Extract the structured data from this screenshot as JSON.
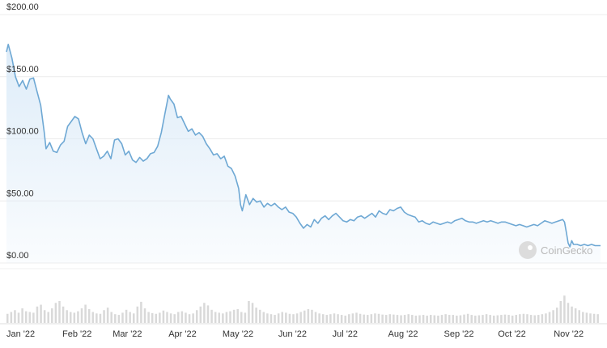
{
  "chart_data": {
    "type": "area",
    "title": "",
    "xlabel": "",
    "ylabel": "",
    "ylim": [
      0,
      200
    ],
    "y_ticks": [
      "$0.00",
      "$50.00",
      "$100.00",
      "$150.00",
      "$200.00"
    ],
    "x_ticks": [
      "Jan '22",
      "Feb '22",
      "Mar '22",
      "Apr '22",
      "May '22",
      "Jun '22",
      "Jul '22",
      "Aug '22",
      "Sep '22",
      "Oct '22",
      "Nov '22"
    ],
    "grid": true,
    "line_color": "#6ea8d4",
    "fill_color": "#e8f2fb",
    "volume_color": "#d9d9d9",
    "series": [
      {
        "values": [
          [
            "2022-01-01",
            170
          ],
          [
            "2022-01-02",
            176
          ],
          [
            "2022-01-04",
            165
          ],
          [
            "2022-01-06",
            150
          ],
          [
            "2022-01-08",
            142
          ],
          [
            "2022-01-10",
            147
          ],
          [
            "2022-01-12",
            140
          ],
          [
            "2022-01-14",
            148
          ],
          [
            "2022-01-16",
            149
          ],
          [
            "2022-01-18",
            138
          ],
          [
            "2022-01-20",
            127
          ],
          [
            "2022-01-22",
            105
          ],
          [
            "2022-01-23",
            92
          ],
          [
            "2022-01-25",
            97
          ],
          [
            "2022-01-27",
            90
          ],
          [
            "2022-01-29",
            89
          ],
          [
            "2022-01-31",
            95
          ],
          [
            "2022-02-02",
            98
          ],
          [
            "2022-02-04",
            110
          ],
          [
            "2022-02-06",
            114
          ],
          [
            "2022-02-08",
            118
          ],
          [
            "2022-02-10",
            116
          ],
          [
            "2022-02-12",
            105
          ],
          [
            "2022-02-14",
            96
          ],
          [
            "2022-02-16",
            103
          ],
          [
            "2022-02-18",
            100
          ],
          [
            "2022-02-20",
            92
          ],
          [
            "2022-02-22",
            84
          ],
          [
            "2022-02-24",
            86
          ],
          [
            "2022-02-26",
            90
          ],
          [
            "2022-02-28",
            84
          ],
          [
            "2022-03-02",
            99
          ],
          [
            "2022-03-04",
            100
          ],
          [
            "2022-03-06",
            96
          ],
          [
            "2022-03-08",
            87
          ],
          [
            "2022-03-10",
            90
          ],
          [
            "2022-03-12",
            83
          ],
          [
            "2022-03-14",
            81
          ],
          [
            "2022-03-16",
            85
          ],
          [
            "2022-03-18",
            82
          ],
          [
            "2022-03-20",
            84
          ],
          [
            "2022-03-22",
            88
          ],
          [
            "2022-03-24",
            89
          ],
          [
            "2022-03-26",
            94
          ],
          [
            "2022-03-28",
            105
          ],
          [
            "2022-03-30",
            120
          ],
          [
            "2022-04-01",
            135
          ],
          [
            "2022-04-02",
            132
          ],
          [
            "2022-04-04",
            128
          ],
          [
            "2022-04-06",
            117
          ],
          [
            "2022-04-08",
            118
          ],
          [
            "2022-04-10",
            112
          ],
          [
            "2022-04-12",
            106
          ],
          [
            "2022-04-14",
            108
          ],
          [
            "2022-04-16",
            103
          ],
          [
            "2022-04-18",
            105
          ],
          [
            "2022-04-20",
            102
          ],
          [
            "2022-04-22",
            96
          ],
          [
            "2022-04-24",
            92
          ],
          [
            "2022-04-26",
            87
          ],
          [
            "2022-04-28",
            88
          ],
          [
            "2022-04-30",
            84
          ],
          [
            "2022-05-02",
            86
          ],
          [
            "2022-05-04",
            78
          ],
          [
            "2022-05-06",
            76
          ],
          [
            "2022-05-08",
            70
          ],
          [
            "2022-05-10",
            60
          ],
          [
            "2022-05-11",
            47
          ],
          [
            "2022-05-12",
            42
          ],
          [
            "2022-05-14",
            55
          ],
          [
            "2022-05-16",
            47
          ],
          [
            "2022-05-18",
            52
          ],
          [
            "2022-05-20",
            49
          ],
          [
            "2022-05-22",
            50
          ],
          [
            "2022-05-24",
            45
          ],
          [
            "2022-05-26",
            48
          ],
          [
            "2022-05-28",
            46
          ],
          [
            "2022-05-30",
            48
          ],
          [
            "2022-06-01",
            45
          ],
          [
            "2022-06-03",
            43
          ],
          [
            "2022-06-05",
            45
          ],
          [
            "2022-06-07",
            41
          ],
          [
            "2022-06-09",
            40
          ],
          [
            "2022-06-11",
            37
          ],
          [
            "2022-06-13",
            32
          ],
          [
            "2022-06-15",
            28
          ],
          [
            "2022-06-17",
            31
          ],
          [
            "2022-06-19",
            29
          ],
          [
            "2022-06-21",
            35
          ],
          [
            "2022-06-23",
            32
          ],
          [
            "2022-06-25",
            36
          ],
          [
            "2022-06-27",
            38
          ],
          [
            "2022-06-29",
            35
          ],
          [
            "2022-07-01",
            38
          ],
          [
            "2022-07-03",
            40
          ],
          [
            "2022-07-05",
            37
          ],
          [
            "2022-07-07",
            34
          ],
          [
            "2022-07-09",
            33
          ],
          [
            "2022-07-11",
            35
          ],
          [
            "2022-07-13",
            34
          ],
          [
            "2022-07-15",
            37
          ],
          [
            "2022-07-17",
            38
          ],
          [
            "2022-07-19",
            36
          ],
          [
            "2022-07-21",
            38
          ],
          [
            "2022-07-23",
            40
          ],
          [
            "2022-07-25",
            37
          ],
          [
            "2022-07-27",
            42
          ],
          [
            "2022-07-29",
            40
          ],
          [
            "2022-07-31",
            39
          ],
          [
            "2022-08-02",
            43
          ],
          [
            "2022-08-04",
            42
          ],
          [
            "2022-08-06",
            44
          ],
          [
            "2022-08-08",
            45
          ],
          [
            "2022-08-10",
            41
          ],
          [
            "2022-08-12",
            39
          ],
          [
            "2022-08-14",
            38
          ],
          [
            "2022-08-16",
            37
          ],
          [
            "2022-08-18",
            33
          ],
          [
            "2022-08-20",
            34
          ],
          [
            "2022-08-22",
            32
          ],
          [
            "2022-08-24",
            31
          ],
          [
            "2022-08-26",
            33
          ],
          [
            "2022-08-28",
            32
          ],
          [
            "2022-08-30",
            31
          ],
          [
            "2022-09-01",
            32
          ],
          [
            "2022-09-03",
            33
          ],
          [
            "2022-09-05",
            32
          ],
          [
            "2022-09-07",
            34
          ],
          [
            "2022-09-09",
            35
          ],
          [
            "2022-09-11",
            36
          ],
          [
            "2022-09-13",
            34
          ],
          [
            "2022-09-15",
            33
          ],
          [
            "2022-09-17",
            33
          ],
          [
            "2022-09-19",
            32
          ],
          [
            "2022-09-21",
            33
          ],
          [
            "2022-09-23",
            34
          ],
          [
            "2022-09-25",
            33
          ],
          [
            "2022-09-27",
            34
          ],
          [
            "2022-09-29",
            33
          ],
          [
            "2022-10-01",
            32
          ],
          [
            "2022-10-03",
            33
          ],
          [
            "2022-10-05",
            33
          ],
          [
            "2022-10-07",
            32
          ],
          [
            "2022-10-09",
            31
          ],
          [
            "2022-10-11",
            30
          ],
          [
            "2022-10-13",
            31
          ],
          [
            "2022-10-15",
            30
          ],
          [
            "2022-10-17",
            29
          ],
          [
            "2022-10-19",
            30
          ],
          [
            "2022-10-21",
            31
          ],
          [
            "2022-10-23",
            30
          ],
          [
            "2022-10-25",
            32
          ],
          [
            "2022-10-27",
            34
          ],
          [
            "2022-10-29",
            33
          ],
          [
            "2022-10-31",
            32
          ],
          [
            "2022-11-02",
            33
          ],
          [
            "2022-11-04",
            34
          ],
          [
            "2022-11-06",
            35
          ],
          [
            "2022-11-07",
            33
          ],
          [
            "2022-11-08",
            25
          ],
          [
            "2022-11-09",
            16
          ],
          [
            "2022-11-10",
            13
          ],
          [
            "2022-11-11",
            18
          ],
          [
            "2022-11-12",
            15
          ],
          [
            "2022-11-14",
            15
          ],
          [
            "2022-11-16",
            14
          ],
          [
            "2022-11-18",
            15
          ],
          [
            "2022-11-20",
            14
          ],
          [
            "2022-11-22",
            15
          ],
          [
            "2022-11-24",
            14
          ],
          [
            "2022-11-27",
            14
          ]
        ]
      }
    ],
    "volume_relative": [
      0.25,
      0.3,
      0.35,
      0.28,
      0.4,
      0.32,
      0.3,
      0.28,
      0.45,
      0.5,
      0.35,
      0.3,
      0.4,
      0.55,
      0.6,
      0.45,
      0.35,
      0.3,
      0.28,
      0.32,
      0.4,
      0.5,
      0.38,
      0.3,
      0.26,
      0.25,
      0.35,
      0.42,
      0.3,
      0.24,
      0.22,
      0.28,
      0.36,
      0.3,
      0.26,
      0.45,
      0.58,
      0.4,
      0.3,
      0.27,
      0.25,
      0.28,
      0.34,
      0.3,
      0.26,
      0.24,
      0.3,
      0.32,
      0.28,
      0.24,
      0.26,
      0.35,
      0.45,
      0.55,
      0.48,
      0.36,
      0.3,
      0.28,
      0.26,
      0.3,
      0.32,
      0.36,
      0.38,
      0.3,
      0.28,
      0.6,
      0.55,
      0.42,
      0.36,
      0.3,
      0.26,
      0.24,
      0.22,
      0.26,
      0.3,
      0.28,
      0.25,
      0.24,
      0.26,
      0.3,
      0.34,
      0.38,
      0.36,
      0.3,
      0.26,
      0.24,
      0.22,
      0.24,
      0.26,
      0.24,
      0.22,
      0.2,
      0.24,
      0.26,
      0.28,
      0.25,
      0.23,
      0.22,
      0.24,
      0.26,
      0.25,
      0.23,
      0.22,
      0.24,
      0.23,
      0.22,
      0.21,
      0.22,
      0.24,
      0.22,
      0.2,
      0.21,
      0.22,
      0.2,
      0.22,
      0.21,
      0.2,
      0.22,
      0.24,
      0.22,
      0.22,
      0.2,
      0.21,
      0.23,
      0.25,
      0.22,
      0.2,
      0.21,
      0.22,
      0.24,
      0.22,
      0.2,
      0.21,
      0.22,
      0.23,
      0.22,
      0.2,
      0.22,
      0.24,
      0.25,
      0.24,
      0.22,
      0.21,
      0.22,
      0.24,
      0.26,
      0.3,
      0.35,
      0.42,
      0.6,
      0.75,
      0.55,
      0.45,
      0.4,
      0.35,
      0.3,
      0.28,
      0.26,
      0.25,
      0.24
    ]
  },
  "watermark": {
    "text": "CoinGecko"
  }
}
